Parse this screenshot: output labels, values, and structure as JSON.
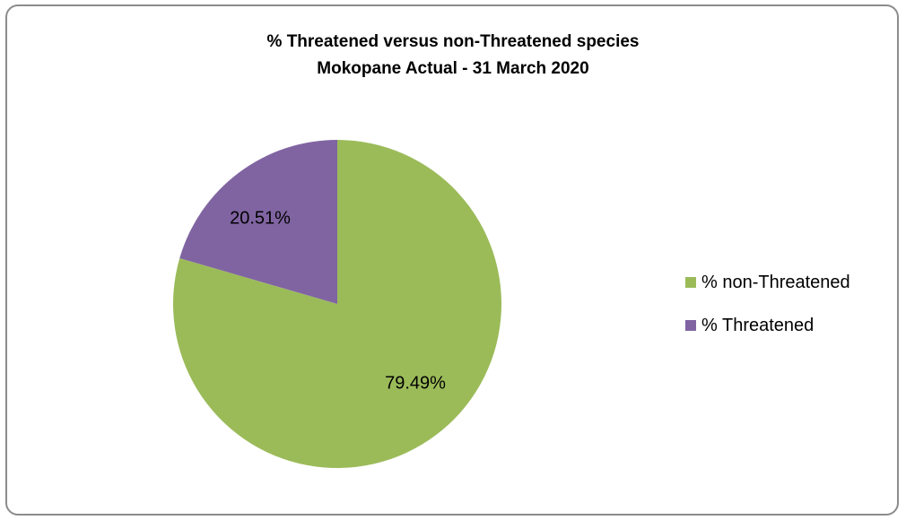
{
  "chart_data": {
    "type": "pie",
    "title": "% Threatened versus non-Threatened species",
    "subtitle": "Mokopane Actual - 31 March 2020",
    "categories": [
      "% non-Threatened",
      "% Threatened"
    ],
    "values": [
      79.49,
      20.51
    ],
    "data_labels": [
      "79.49%",
      "20.51%"
    ],
    "colors": [
      "#9bbb59",
      "#8064a2"
    ],
    "legend_position": "right"
  }
}
